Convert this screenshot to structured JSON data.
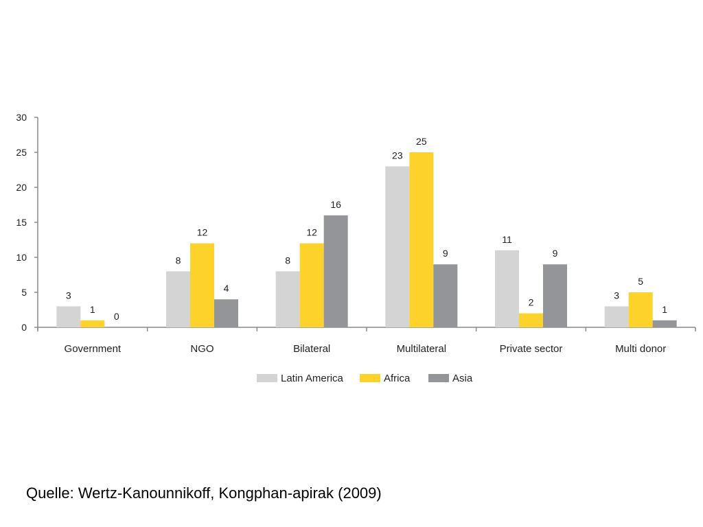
{
  "chart_data": {
    "type": "bar",
    "title": "",
    "xlabel": "",
    "ylabel": "",
    "categories": [
      "Government",
      "NGO",
      "Bilateral",
      "Multilateral",
      "Private sector",
      "Multi donor"
    ],
    "series": [
      {
        "name": "Latin America",
        "values": [
          3,
          8,
          8,
          23,
          11,
          3
        ],
        "color": "#d4d4d4"
      },
      {
        "name": "Africa",
        "values": [
          1,
          12,
          12,
          25,
          2,
          5
        ],
        "color": "#fdd22b"
      },
      {
        "name": "Asia",
        "values": [
          0,
          4,
          16,
          9,
          9,
          1
        ],
        "color": "#939598"
      }
    ],
    "ylim": [
      0,
      30
    ],
    "yticks": [
      0,
      5,
      10,
      15,
      20,
      25,
      30
    ],
    "grid": false,
    "legend_position": "bottom",
    "data_labels": true
  },
  "source_text": "Quelle: Wertz-Kanounnikoff, Kongphan-apirak (2009)"
}
